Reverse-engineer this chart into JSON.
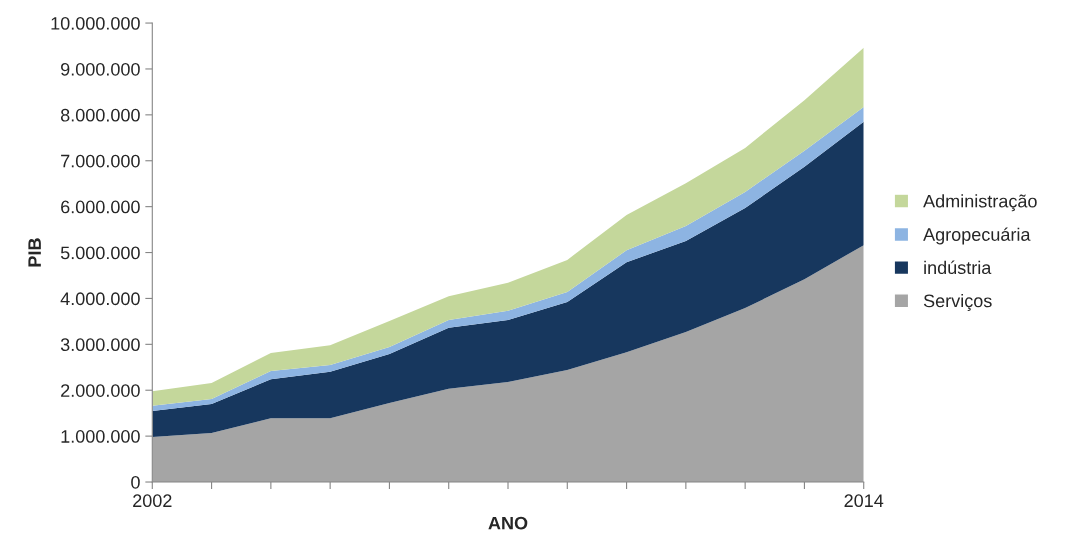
{
  "chart_data": {
    "type": "area",
    "stacked": true,
    "xlabel": "ANO",
    "ylabel": "PIB",
    "x": [
      2002,
      2003,
      2004,
      2005,
      2006,
      2007,
      2008,
      2009,
      2010,
      2011,
      2012,
      2013,
      2014
    ],
    "xlim": [
      2002,
      2014
    ],
    "xticks": [
      2002,
      {
        "value": 2003,
        "label": null
      },
      {
        "value": 2004,
        "label": null
      },
      {
        "value": 2005,
        "label": null
      },
      {
        "value": 2006,
        "label": null
      },
      {
        "value": 2007,
        "label": null
      },
      {
        "value": 2008,
        "label": null
      },
      {
        "value": 2009,
        "label": null
      },
      {
        "value": 2010,
        "label": null
      },
      {
        "value": 2011,
        "label": null
      },
      {
        "value": 2012,
        "label": null
      },
      {
        "value": 2013,
        "label": null
      },
      2014
    ],
    "ylim": [
      0,
      10000000
    ],
    "yticks": [
      0,
      {
        "value": 1000000,
        "label": "1.000.000"
      },
      {
        "value": 2000000,
        "label": "2.000.000"
      },
      {
        "value": 3000000,
        "label": "3.000.000"
      },
      {
        "value": 4000000,
        "label": "4.000.000"
      },
      {
        "value": 5000000,
        "label": "5.000.000"
      },
      {
        "value": 6000000,
        "label": "6.000.000"
      },
      {
        "value": 7000000,
        "label": "7.000.000"
      },
      {
        "value": 8000000,
        "label": "8.000.000"
      },
      {
        "value": 9000000,
        "label": "9.000.000"
      },
      {
        "value": 10000000,
        "label": "10.000.000"
      }
    ],
    "grid": false,
    "legend": "right",
    "series": [
      {
        "name": "Serviços",
        "color": "#a5a5a5",
        "values": [
          980000,
          1070000,
          1390000,
          1390000,
          1720000,
          2030000,
          2180000,
          2440000,
          2830000,
          3270000,
          3790000,
          4420000,
          5160000
        ]
      },
      {
        "name": "indústria",
        "color": "#17375e",
        "values": [
          570000,
          630000,
          850000,
          1010000,
          1070000,
          1330000,
          1350000,
          1480000,
          1960000,
          1980000,
          2180000,
          2450000,
          2690000
        ]
      },
      {
        "name": "Agropecuária",
        "color": "#8db4e2",
        "values": [
          110000,
          110000,
          180000,
          150000,
          150000,
          170000,
          200000,
          220000,
          260000,
          330000,
          350000,
          350000,
          320000
        ]
      },
      {
        "name": "Administração",
        "color": "#c4d79b",
        "values": [
          320000,
          350000,
          390000,
          430000,
          570000,
          520000,
          610000,
          700000,
          770000,
          930000,
          960000,
          1100000,
          1290000
        ]
      }
    ]
  }
}
